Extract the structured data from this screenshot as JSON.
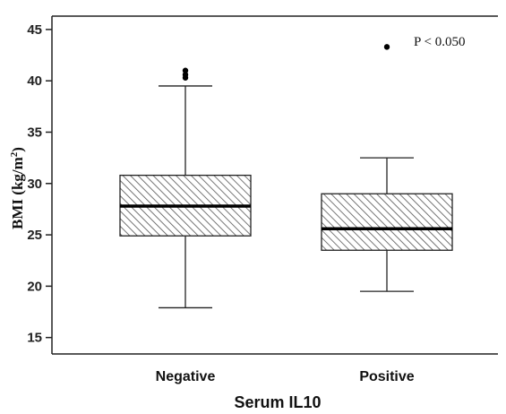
{
  "chart_data": {
    "type": "box",
    "categories": [
      "Negative",
      "Positive"
    ],
    "boxes": [
      {
        "category": "Negative",
        "whisker_low": 17.9,
        "q1": 24.9,
        "median": 27.8,
        "q3": 30.8,
        "whisker_high": 39.5,
        "outliers": [
          40.3,
          40.6,
          41.0
        ]
      },
      {
        "category": "Positive",
        "whisker_low": 19.5,
        "q1": 23.5,
        "median": 25.6,
        "q3": 29.0,
        "whisker_high": 32.5,
        "outliers": [
          43.3
        ]
      }
    ],
    "xlabel": "Serum IL10",
    "ylabel_main": "BMI (kg/m",
    "ylabel_sup": "2",
    "ylabel_close": ")",
    "yticks": [
      15,
      20,
      25,
      30,
      35,
      40,
      45
    ],
    "ylim": [
      13.4,
      46.3
    ],
    "annotation": "P < 0.050",
    "grid": false,
    "box_fill": "hatched",
    "colors": {
      "box_stroke": "#222222",
      "median": "#000000",
      "hatch": "#555555",
      "outlier": "#000000"
    }
  }
}
